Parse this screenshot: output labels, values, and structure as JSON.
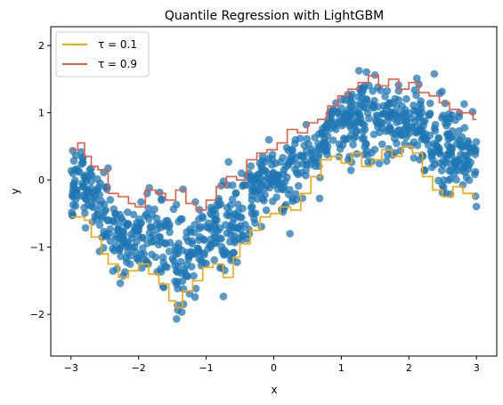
{
  "chart_data": {
    "type": "scatter",
    "title": "Quantile Regression with LightGBM",
    "xlabel": "x",
    "ylabel": "y",
    "xlim": [
      -3.3,
      3.3
    ],
    "ylim": [
      -2.62,
      2.28
    ],
    "xticks": [
      -3,
      -2,
      -1,
      0,
      1,
      2,
      3
    ],
    "xtick_labels": [
      "−3",
      "−2",
      "−1",
      "0",
      "1",
      "2",
      "3"
    ],
    "yticks": [
      -2,
      -1,
      0,
      1,
      2
    ],
    "ytick_labels": [
      "−2",
      "−1",
      "0",
      "1",
      "2"
    ],
    "grid": false,
    "legend_position": "top-left",
    "colors": {
      "points": "#1f77b4",
      "q10": "#ffa500",
      "q90": "#f05a3c"
    },
    "series": [
      {
        "name": "τ = 0.1",
        "kind": "step-line",
        "x": [
          -3.0,
          -2.8,
          -2.7,
          -2.55,
          -2.45,
          -2.3,
          -2.15,
          -2.0,
          -1.85,
          -1.7,
          -1.55,
          -1.45,
          -1.35,
          -1.2,
          -1.05,
          -0.9,
          -0.75,
          -0.6,
          -0.5,
          -0.35,
          -0.2,
          -0.05,
          0.1,
          0.25,
          0.4,
          0.55,
          0.7,
          0.85,
          1.0,
          1.15,
          1.3,
          1.45,
          1.6,
          1.75,
          1.9,
          2.05,
          2.2,
          2.35,
          2.5,
          2.65,
          2.8,
          2.95
        ],
        "y": [
          -0.55,
          -0.6,
          -0.85,
          -1.1,
          -1.25,
          -1.45,
          -1.35,
          -1.25,
          -1.4,
          -1.55,
          -1.8,
          -1.9,
          -1.65,
          -1.5,
          -1.3,
          -1.25,
          -1.45,
          -1.15,
          -0.95,
          -0.75,
          -0.55,
          -0.5,
          -0.4,
          -0.45,
          -0.2,
          0.05,
          0.3,
          0.35,
          0.25,
          0.4,
          0.2,
          0.3,
          0.45,
          0.35,
          0.5,
          0.4,
          0.05,
          -0.15,
          -0.25,
          -0.1,
          -0.2,
          -0.25
        ]
      },
      {
        "name": "τ = 0.9",
        "kind": "step-line",
        "x": [
          -3.0,
          -2.9,
          -2.8,
          -2.7,
          -2.6,
          -2.45,
          -2.3,
          -2.15,
          -2.05,
          -1.9,
          -1.75,
          -1.6,
          -1.45,
          -1.3,
          -1.15,
          -1.0,
          -0.85,
          -0.7,
          -0.55,
          -0.4,
          -0.25,
          -0.1,
          0.05,
          0.2,
          0.35,
          0.5,
          0.65,
          0.8,
          0.95,
          1.1,
          1.25,
          1.4,
          1.55,
          1.7,
          1.85,
          2.0,
          2.15,
          2.3,
          2.45,
          2.6,
          2.75,
          2.95
        ],
        "y": [
          0.45,
          0.55,
          0.35,
          0.2,
          0.15,
          -0.2,
          -0.25,
          -0.35,
          -0.4,
          -0.15,
          -0.2,
          -0.3,
          -0.15,
          -0.35,
          -0.45,
          -0.3,
          -0.1,
          0.05,
          0.0,
          0.3,
          0.4,
          0.45,
          0.55,
          0.75,
          0.7,
          0.85,
          0.9,
          1.1,
          1.25,
          1.35,
          1.45,
          1.55,
          1.4,
          1.5,
          1.35,
          1.45,
          1.3,
          1.25,
          1.15,
          1.05,
          1.0,
          0.9
        ]
      }
    ],
    "legend_entries": [
      "τ = 0.1",
      "τ = 0.9"
    ]
  }
}
